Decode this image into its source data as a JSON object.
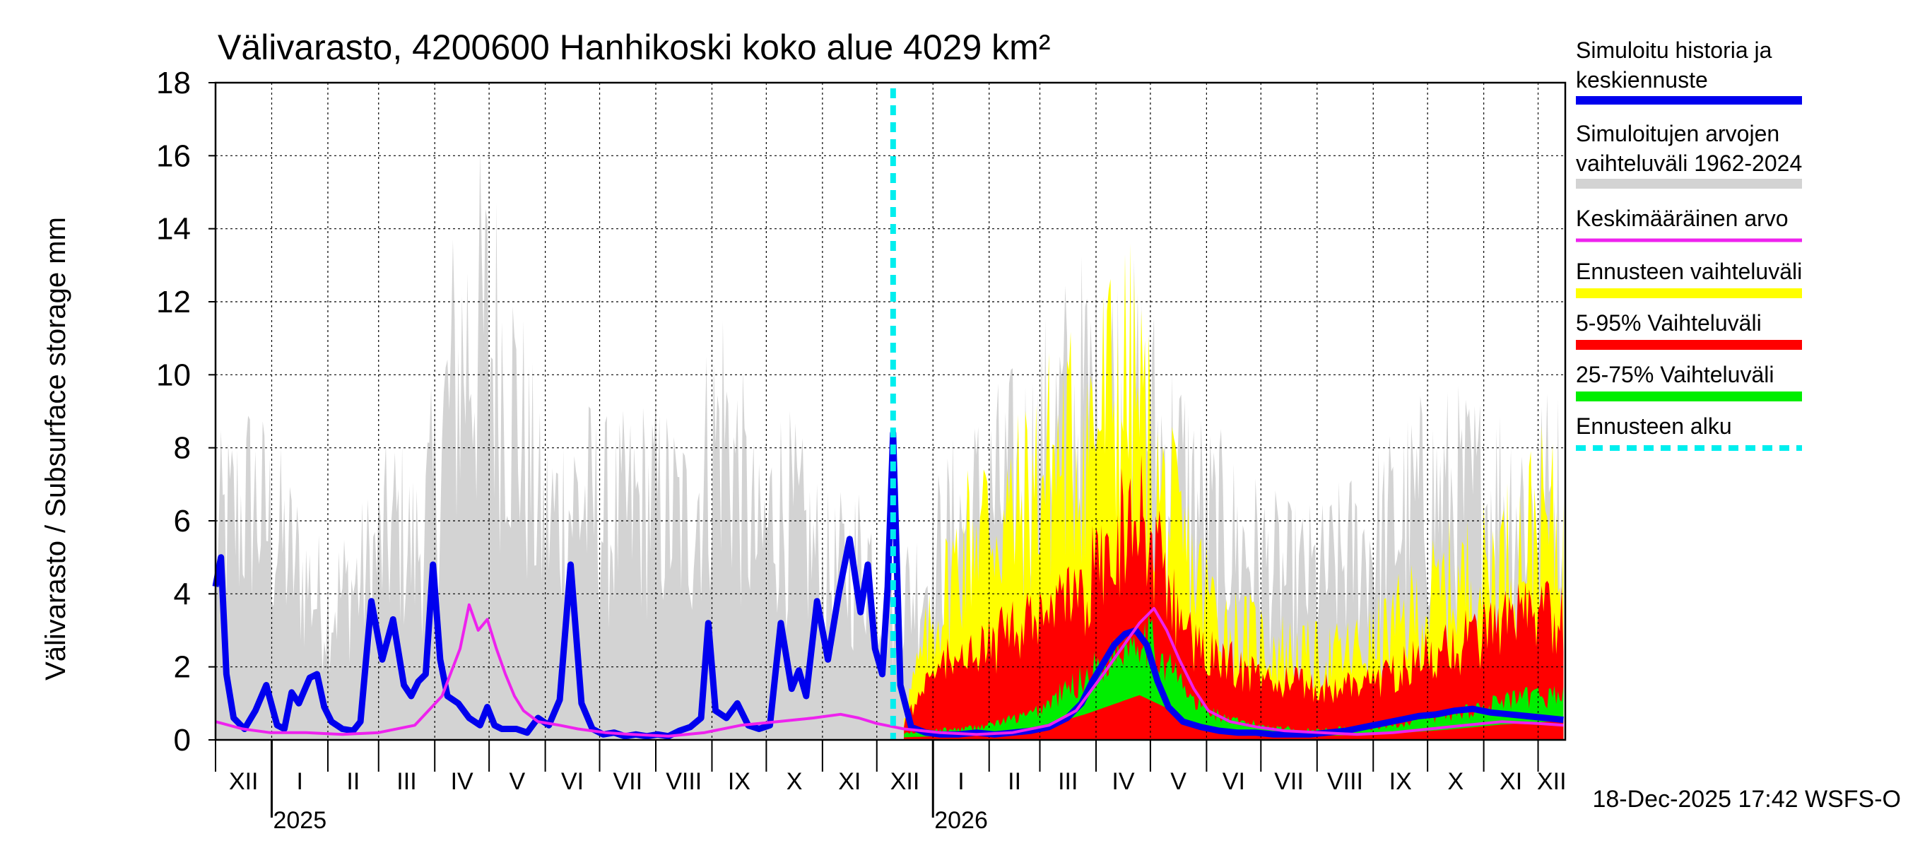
{
  "chart_data": {
    "type": "area",
    "title": "Välivarasto, 4200600 Hanhikoski koko alue 4029 km²",
    "ylabel": "Välivarasto / Subsurface storage  mm",
    "ylim": [
      0,
      18
    ],
    "yticks": [
      0,
      2,
      4,
      6,
      8,
      10,
      12,
      14,
      16,
      18
    ],
    "yticklabels": [
      "0",
      "2",
      "4",
      "6",
      "8",
      "10",
      "12",
      "14",
      "16",
      "18"
    ],
    "month_labels": [
      "XII",
      "I",
      "II",
      "III",
      "IV",
      "V",
      "VI",
      "VII",
      "VIII",
      "IX",
      "X",
      "XI",
      "XII",
      "I",
      "II",
      "III",
      "IV",
      "V",
      "VI",
      "VII",
      "VIII",
      "IX",
      "X",
      "XI",
      "XII"
    ],
    "year_labels": [
      "2025",
      "2026"
    ],
    "forecast_start_day": 374,
    "footer": "18-Dec-2025 17:42 WSFS-O",
    "legend": [
      {
        "label": "Simuloitu historia ja keskiennuste",
        "color": "#0000ee"
      },
      {
        "label": "Simuloitujen arvojen vaihteluväli 1962-2024",
        "color": "#d3d3d3"
      },
      {
        "label": "Keskimääräinen arvo",
        "color": "#ee22ee"
      },
      {
        "label": "Ennusteen vaihteluväli",
        "color": "#ffff00"
      },
      {
        "label": "5-95% Vaihteluväli",
        "color": "#ff0000"
      },
      {
        "label": "25-75% Vaihteluväli",
        "color": "#00ee00"
      },
      {
        "label": "Ennusteen alku",
        "color": "#00eeee"
      }
    ],
    "series": [
      {
        "name": "Simuloitu historia ja keskiennuste",
        "color": "#0000ee",
        "x": [
          0,
          3,
          6,
          10,
          16,
          22,
          28,
          34,
          38,
          42,
          46,
          52,
          56,
          60,
          64,
          70,
          76,
          80,
          86,
          92,
          98,
          104,
          108,
          112,
          116,
          120,
          124,
          128,
          134,
          140,
          146,
          150,
          154,
          158,
          162,
          166,
          172,
          178,
          184,
          190,
          196,
          202,
          208,
          214,
          220,
          226,
          232,
          238,
          244,
          250,
          256,
          262,
          268,
          272,
          276,
          282,
          288,
          294,
          300,
          306,
          312,
          318,
          322,
          326,
          332,
          338,
          344,
          350,
          356,
          360,
          364,
          368,
          371,
          374,
          378,
          384,
          392,
          400,
          410,
          420,
          430,
          440,
          450,
          460,
          470,
          478,
          484,
          490,
          496,
          502,
          508,
          514,
          520,
          526,
          534,
          544,
          554,
          564,
          574,
          584,
          594,
          604,
          614,
          624,
          634,
          644,
          654,
          664,
          674,
          684,
          694,
          704,
          714,
          724,
          734,
          744
        ],
        "y": [
          4.2,
          5.0,
          1.8,
          0.6,
          0.3,
          0.8,
          1.5,
          0.4,
          0.3,
          1.3,
          1.0,
          1.7,
          1.8,
          0.9,
          0.5,
          0.3,
          0.25,
          0.5,
          3.8,
          2.2,
          3.3,
          1.5,
          1.2,
          1.6,
          1.8,
          4.8,
          2.2,
          1.2,
          1.0,
          0.6,
          0.4,
          0.9,
          0.4,
          0.3,
          0.3,
          0.3,
          0.2,
          0.6,
          0.4,
          1.1,
          4.8,
          1.0,
          0.3,
          0.15,
          0.2,
          0.1,
          0.15,
          0.1,
          0.15,
          0.1,
          0.25,
          0.35,
          0.6,
          3.2,
          0.8,
          0.6,
          1.0,
          0.4,
          0.3,
          0.4,
          3.2,
          1.4,
          1.9,
          1.2,
          3.8,
          2.2,
          4.0,
          5.5,
          3.5,
          4.8,
          2.5,
          1.8,
          4.2,
          8.4,
          1.5,
          0.35,
          0.2,
          0.15,
          0.15,
          0.2,
          0.15,
          0.2,
          0.25,
          0.35,
          0.6,
          1.0,
          1.6,
          2.1,
          2.6,
          2.9,
          3.0,
          2.6,
          1.6,
          0.9,
          0.5,
          0.35,
          0.25,
          0.2,
          0.2,
          0.15,
          0.15,
          0.15,
          0.2,
          0.25,
          0.35,
          0.45,
          0.55,
          0.65,
          0.7,
          0.8,
          0.85,
          0.75,
          0.7,
          0.65,
          0.6,
          0.55
        ]
      },
      {
        "name": "Keskimääräinen arvo",
        "color": "#ee22ee",
        "x": [
          0,
          15,
          30,
          50,
          70,
          90,
          110,
          125,
          135,
          140,
          145,
          150,
          155,
          160,
          165,
          170,
          178,
          190,
          200,
          215,
          230,
          250,
          270,
          290,
          310,
          330,
          345,
          355,
          365,
          380,
          400,
          420,
          440,
          460,
          475,
          490,
          500,
          510,
          518,
          525,
          532,
          540,
          548,
          560,
          575,
          590,
          610,
          630,
          650,
          670,
          690,
          710,
          730,
          744
        ],
        "y": [
          0.5,
          0.3,
          0.2,
          0.2,
          0.15,
          0.2,
          0.4,
          1.2,
          2.5,
          3.7,
          3.0,
          3.3,
          2.5,
          1.8,
          1.2,
          0.8,
          0.5,
          0.4,
          0.3,
          0.2,
          0.15,
          0.1,
          0.2,
          0.4,
          0.5,
          0.6,
          0.7,
          0.6,
          0.45,
          0.3,
          0.2,
          0.15,
          0.2,
          0.4,
          0.8,
          1.8,
          2.5,
          3.2,
          3.6,
          3.0,
          2.2,
          1.4,
          0.8,
          0.5,
          0.35,
          0.25,
          0.2,
          0.15,
          0.2,
          0.3,
          0.4,
          0.5,
          0.45,
          0.4
        ]
      }
    ]
  }
}
